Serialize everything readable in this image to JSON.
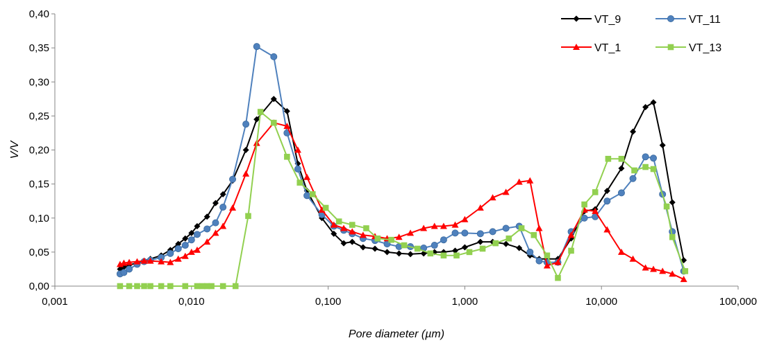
{
  "chart_data": {
    "type": "line",
    "title": "",
    "xlabel": "Pore diameter (µm)",
    "ylabel": "V/V",
    "xscale": "log",
    "xlim": [
      0.001,
      100
    ],
    "ylim": [
      0,
      0.4
    ],
    "x_ticks": [
      0.001,
      0.01,
      0.1,
      1,
      10,
      100
    ],
    "x_tick_labels": [
      "0,001",
      "0,010",
      "0,100",
      "1,000",
      "10,000",
      "100,000"
    ],
    "y_ticks": [
      0,
      0.05,
      0.1,
      0.15,
      0.2,
      0.25,
      0.3,
      0.35,
      0.4
    ],
    "y_tick_labels": [
      "0,00",
      "0,05",
      "0,10",
      "0,15",
      "0,20",
      "0,25",
      "0,30",
      "0,35",
      "0,40"
    ],
    "grid": false,
    "legend_position": "top-right",
    "series": [
      {
        "name": "VT_9",
        "color": "#000000",
        "marker": "diamond",
        "x": [
          0.003,
          0.0032,
          0.0035,
          0.004,
          0.0045,
          0.005,
          0.006,
          0.007,
          0.008,
          0.009,
          0.01,
          0.011,
          0.013,
          0.015,
          0.017,
          0.02,
          0.025,
          0.03,
          0.04,
          0.05,
          0.06,
          0.07,
          0.09,
          0.11,
          0.13,
          0.15,
          0.18,
          0.22,
          0.27,
          0.33,
          0.4,
          0.5,
          0.6,
          0.7,
          0.85,
          1.0,
          1.3,
          1.6,
          2.0,
          2.5,
          3.0,
          3.5,
          4.0,
          4.8,
          6.0,
          7.5,
          9.0,
          11,
          14,
          17,
          21,
          24,
          28,
          33,
          40
        ],
        "y": [
          0.025,
          0.028,
          0.031,
          0.034,
          0.037,
          0.04,
          0.045,
          0.053,
          0.062,
          0.07,
          0.078,
          0.088,
          0.102,
          0.122,
          0.135,
          0.155,
          0.2,
          0.245,
          0.275,
          0.257,
          0.18,
          0.14,
          0.1,
          0.077,
          0.063,
          0.065,
          0.057,
          0.055,
          0.05,
          0.048,
          0.047,
          0.048,
          0.05,
          0.05,
          0.052,
          0.057,
          0.065,
          0.065,
          0.062,
          0.056,
          0.045,
          0.04,
          0.04,
          0.04,
          0.07,
          0.11,
          0.113,
          0.14,
          0.173,
          0.227,
          0.263,
          0.27,
          0.207,
          0.123,
          0.038
        ]
      },
      {
        "name": "VT_11",
        "color": "#4F81BD",
        "marker": "circle",
        "x": [
          0.003,
          0.0032,
          0.0035,
          0.004,
          0.0045,
          0.005,
          0.006,
          0.007,
          0.008,
          0.009,
          0.01,
          0.011,
          0.013,
          0.015,
          0.017,
          0.02,
          0.025,
          0.03,
          0.04,
          0.05,
          0.06,
          0.07,
          0.09,
          0.11,
          0.13,
          0.15,
          0.18,
          0.22,
          0.27,
          0.33,
          0.4,
          0.5,
          0.6,
          0.7,
          0.85,
          1.0,
          1.3,
          1.6,
          2.0,
          2.5,
          3.0,
          3.5,
          4.0,
          4.8,
          6.0,
          7.5,
          9.0,
          11,
          14,
          17,
          21,
          24,
          28,
          33,
          40
        ],
        "y": [
          0.018,
          0.02,
          0.025,
          0.032,
          0.036,
          0.038,
          0.042,
          0.048,
          0.055,
          0.06,
          0.068,
          0.076,
          0.084,
          0.093,
          0.116,
          0.157,
          0.238,
          0.352,
          0.337,
          0.225,
          0.172,
          0.133,
          0.105,
          0.088,
          0.082,
          0.077,
          0.07,
          0.067,
          0.062,
          0.058,
          0.058,
          0.056,
          0.06,
          0.068,
          0.078,
          0.078,
          0.077,
          0.08,
          0.085,
          0.088,
          0.05,
          0.037,
          0.035,
          0.035,
          0.08,
          0.1,
          0.102,
          0.125,
          0.137,
          0.158,
          0.19,
          0.188,
          0.135,
          0.08,
          0.022
        ]
      },
      {
        "name": "VT_1",
        "color": "#FF0000",
        "marker": "triangle",
        "x": [
          0.003,
          0.0032,
          0.0035,
          0.004,
          0.0045,
          0.005,
          0.006,
          0.007,
          0.008,
          0.009,
          0.01,
          0.011,
          0.013,
          0.015,
          0.017,
          0.02,
          0.025,
          0.03,
          0.04,
          0.05,
          0.06,
          0.07,
          0.09,
          0.11,
          0.13,
          0.15,
          0.18,
          0.22,
          0.27,
          0.33,
          0.4,
          0.5,
          0.6,
          0.7,
          0.85,
          1.0,
          1.3,
          1.6,
          2.0,
          2.5,
          3.0,
          3.5,
          4.0,
          4.8,
          6.0,
          7.5,
          9.0,
          11,
          14,
          17,
          21,
          24,
          28,
          33,
          40
        ],
        "y": [
          0.032,
          0.034,
          0.035,
          0.036,
          0.037,
          0.037,
          0.036,
          0.035,
          0.04,
          0.044,
          0.05,
          0.053,
          0.065,
          0.078,
          0.088,
          0.115,
          0.165,
          0.21,
          0.24,
          0.235,
          0.2,
          0.16,
          0.112,
          0.09,
          0.085,
          0.08,
          0.075,
          0.073,
          0.07,
          0.072,
          0.078,
          0.085,
          0.088,
          0.088,
          0.09,
          0.098,
          0.115,
          0.13,
          0.138,
          0.153,
          0.155,
          0.085,
          0.03,
          0.035,
          0.075,
          0.112,
          0.11,
          0.083,
          0.05,
          0.04,
          0.027,
          0.025,
          0.022,
          0.018,
          0.01
        ]
      },
      {
        "name": "VT_13",
        "color": "#92D050",
        "marker": "square",
        "x": [
          0.003,
          0.0035,
          0.004,
          0.0045,
          0.005,
          0.006,
          0.007,
          0.009,
          0.011,
          0.012,
          0.013,
          0.014,
          0.017,
          0.021,
          0.026,
          0.032,
          0.04,
          0.05,
          0.062,
          0.077,
          0.096,
          0.12,
          0.15,
          0.19,
          0.23,
          0.29,
          0.36,
          0.45,
          0.56,
          0.7,
          0.87,
          1.08,
          1.35,
          1.68,
          2.1,
          2.6,
          3.2,
          4.0,
          4.8,
          6.0,
          7.5,
          9.0,
          11.2,
          14.0,
          17.4,
          21.0,
          24.0,
          30.0,
          33.0,
          41.0
        ],
        "y": [
          0.0,
          0.0,
          0.0,
          0.0,
          0.0,
          0.0,
          0.0,
          0.0,
          0.0,
          0.0,
          0.0,
          0.0,
          0.0,
          0.0,
          0.103,
          0.256,
          0.24,
          0.19,
          0.152,
          0.135,
          0.115,
          0.095,
          0.09,
          0.085,
          0.07,
          0.068,
          0.06,
          0.055,
          0.048,
          0.045,
          0.045,
          0.05,
          0.055,
          0.063,
          0.07,
          0.085,
          0.075,
          0.045,
          0.012,
          0.052,
          0.12,
          0.138,
          0.187,
          0.187,
          0.17,
          0.175,
          0.172,
          0.117,
          0.072,
          0.022
        ]
      }
    ]
  }
}
